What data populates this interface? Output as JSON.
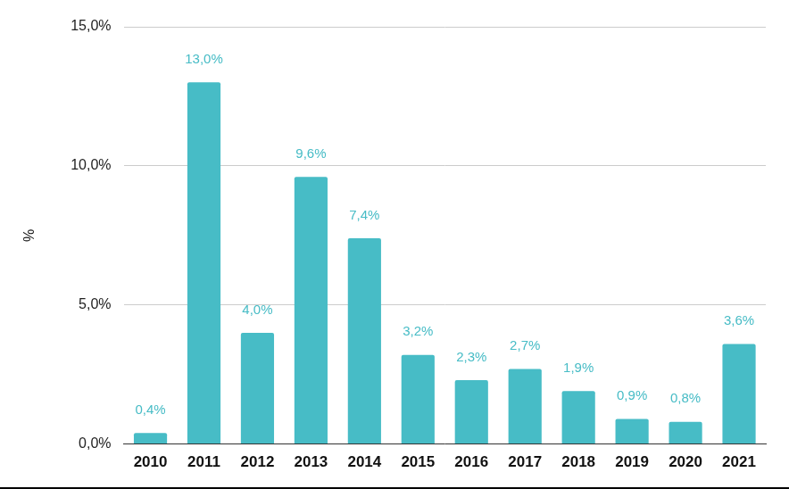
{
  "chart_data": {
    "type": "bar",
    "categories": [
      "2010",
      "2011",
      "2012",
      "2013",
      "2014",
      "2015",
      "2016",
      "2017",
      "2018",
      "2019",
      "2020",
      "2021"
    ],
    "values": [
      0.4,
      13.0,
      4.0,
      9.6,
      7.4,
      3.2,
      2.3,
      2.7,
      1.9,
      0.9,
      0.8,
      3.6
    ],
    "value_labels": [
      "0,4%",
      "13,0%",
      "4,0%",
      "9,6%",
      "7,4%",
      "3,2%",
      "2,3%",
      "2,7%",
      "1,9%",
      "0,9%",
      "0,8%",
      "3,6%"
    ],
    "color": "#47bcc6",
    "y_label": "%",
    "ylim": [
      0,
      15
    ],
    "yticks": [
      {
        "value": 0,
        "label": "0,0%"
      },
      {
        "value": 5,
        "label": "5,0%"
      },
      {
        "value": 10,
        "label": "10,0%"
      },
      {
        "value": 15,
        "label": "15,0%"
      }
    ],
    "grid": true,
    "data_labels": true
  }
}
